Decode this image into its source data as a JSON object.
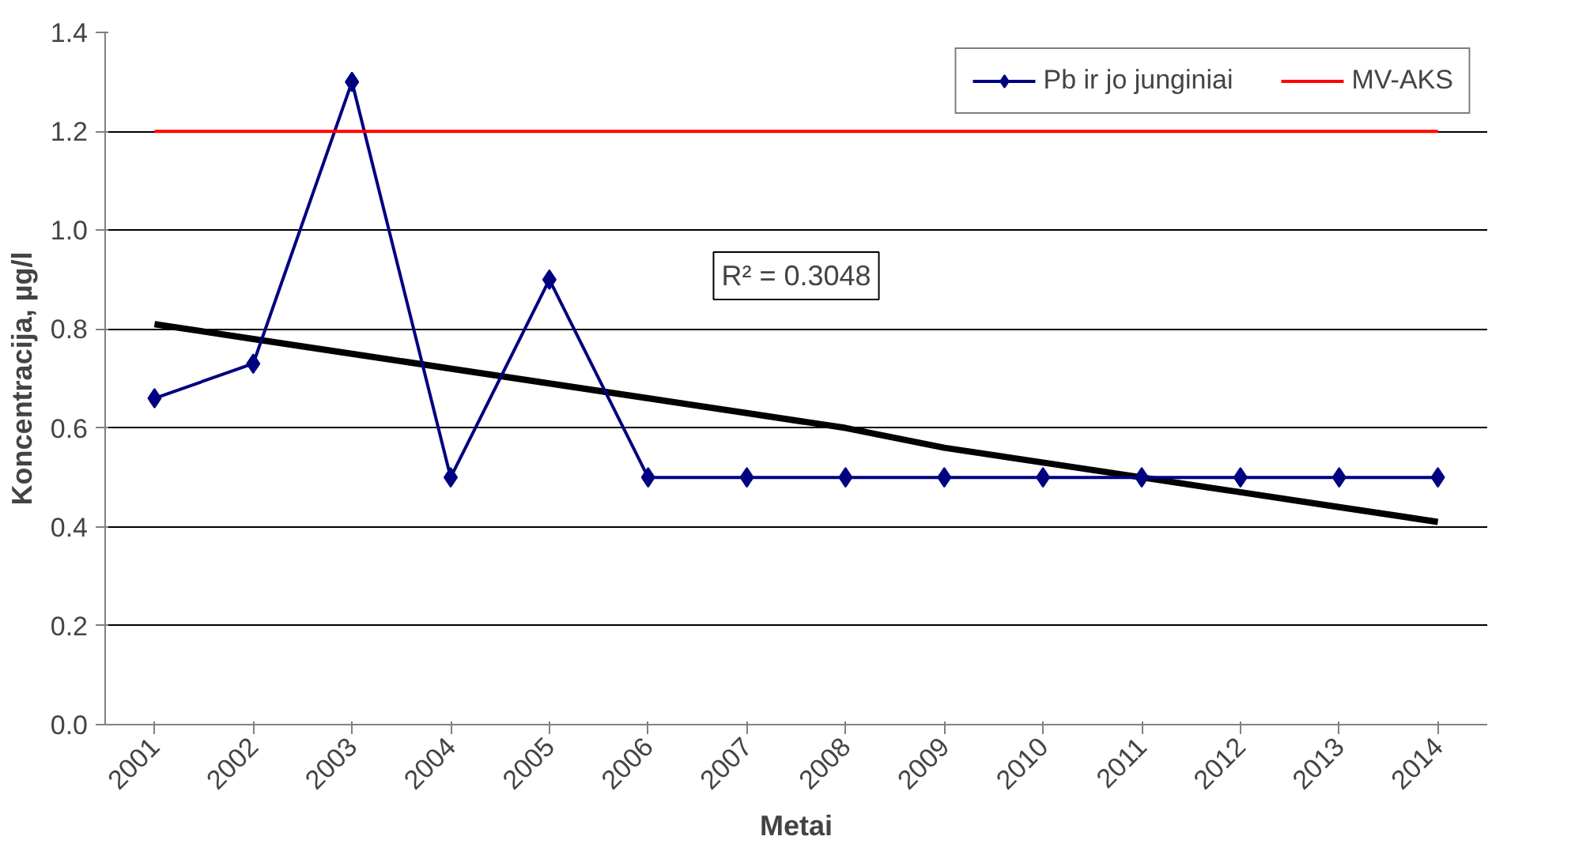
{
  "chart_data": {
    "type": "line",
    "xlabel": "Metai",
    "ylabel": "Koncentracija, µg/l",
    "categories": [
      "2001",
      "2002",
      "2003",
      "2004",
      "2005",
      "2006",
      "2007",
      "2008",
      "2009",
      "2010",
      "2011",
      "2012",
      "2013",
      "2014"
    ],
    "series": [
      {
        "name": "Pb ir jo junginiai",
        "color": "#000080",
        "marker": "diamond",
        "values": [
          0.66,
          0.73,
          1.3,
          0.5,
          0.9,
          0.5,
          0.5,
          0.5,
          0.5,
          0.5,
          0.5,
          0.5,
          0.5,
          0.5
        ]
      },
      {
        "name": "MV-AKS",
        "color": "#ff0000",
        "marker": "none",
        "values": [
          1.2,
          1.2,
          1.2,
          1.2,
          1.2,
          1.2,
          1.2,
          1.2,
          1.2,
          1.2,
          1.2,
          1.2,
          1.2,
          1.2
        ]
      },
      {
        "color": "#000000",
        "marker": "none",
        "values": [
          0.81,
          0.78,
          0.75,
          0.72,
          0.69,
          0.66,
          0.63,
          0.6,
          0.56,
          0.53,
          0.5,
          0.47,
          0.44,
          0.41
        ]
      }
    ],
    "annotations": [
      "R² = 0.3048"
    ],
    "ylim": [
      0,
      1.4
    ],
    "yticks": [
      {
        "value": 0,
        "label": "0.0"
      },
      0.2,
      0.4,
      0.6,
      0.8,
      {
        "value": 1,
        "label": "1.0"
      },
      1.2,
      1.4
    ],
    "grid": "y",
    "legend": "top right"
  }
}
